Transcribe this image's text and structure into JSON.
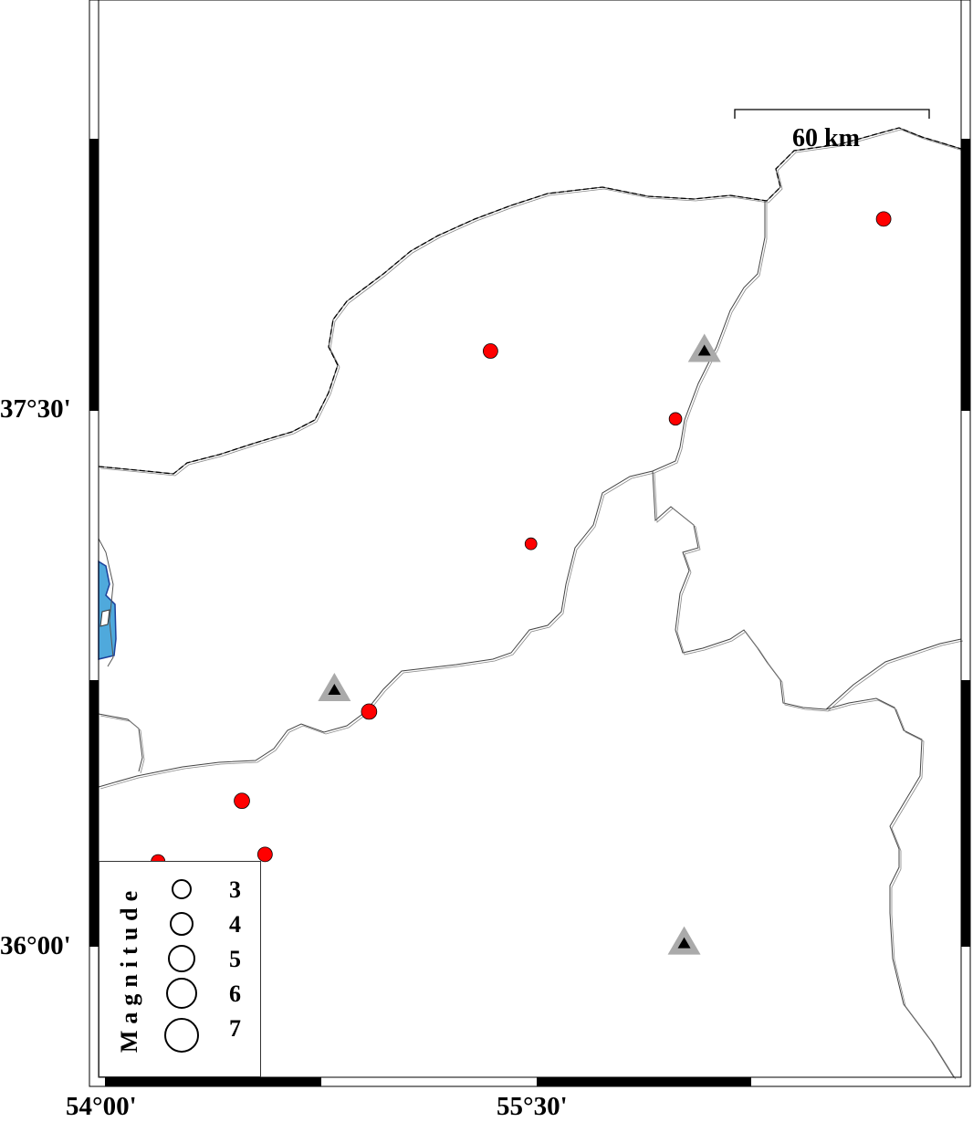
{
  "map": {
    "frame_labels": {
      "lat_top": "37°30'",
      "lat_bottom": "36°00'",
      "lon_left": "54°00'",
      "lon_right": "55°30'"
    },
    "scale_bar": {
      "label": "60 km"
    },
    "colors": {
      "event": "#ff0000",
      "station_outer": "#aaaaaa",
      "station_inner": "#000000",
      "water": "#4fa9dc",
      "water_edge": "#1a3f9a"
    },
    "events": [
      {
        "lon": 56.7,
        "lat": 38.04,
        "mag": 3.0
      },
      {
        "lon": 55.34,
        "lat": 37.67,
        "mag": 3.0
      },
      {
        "lon": 55.98,
        "lat": 37.48,
        "mag": 2.5
      },
      {
        "lon": 55.48,
        "lat": 37.13,
        "mag": 2.3
      },
      {
        "lon": 54.92,
        "lat": 36.66,
        "mag": 3.2
      },
      {
        "lon": 54.48,
        "lat": 36.41,
        "mag": 3.2
      },
      {
        "lon": 54.56,
        "lat": 36.26,
        "mag": 3.0
      },
      {
        "lon": 54.19,
        "lat": 36.24,
        "mag": 2.8
      }
    ],
    "stations": [
      {
        "lon": 56.08,
        "lat": 37.67
      },
      {
        "lon": 54.8,
        "lat": 36.72
      },
      {
        "lon": 56.01,
        "lat": 36.01
      }
    ]
  },
  "legend": {
    "title": "Magnitude",
    "entries": [
      {
        "mag": 3,
        "label": "3"
      },
      {
        "mag": 4,
        "label": "4"
      },
      {
        "mag": 5,
        "label": "5"
      },
      {
        "mag": 6,
        "label": "6"
      },
      {
        "mag": 7,
        "label": "7"
      }
    ]
  }
}
